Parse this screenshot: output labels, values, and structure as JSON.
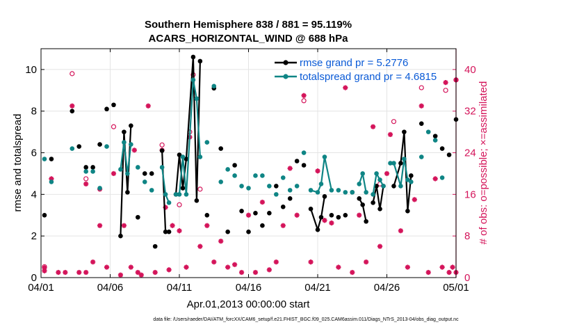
{
  "figure": {
    "title_line1": "Southern Hemisphere 838 / 881 = 95.119%",
    "title_line2": "ACARS_HORIZONTAL_WIND @ 688 hPa",
    "xlabel": "Apr.01,2013 00:00:00 start",
    "footer": "data file: /Users/raeder/DAI/ATM_forcXX/CAM6_setup/f.e21.FHIST_BGC.f09_025.CAM6assim.011/Diags_NTrS_2013-04/obs_diag_output.nc"
  },
  "colors": {
    "rmse": "#000000",
    "spread": "#0f8585",
    "obs": "#d4145a",
    "legend_text": "#0a5ad6",
    "grid": "#e4e4e4"
  },
  "chart_data": {
    "type": "line",
    "x_unit": "day of April 2013 (1 = 04/01 00:00)",
    "xlim": [
      1,
      31
    ],
    "ylim": [
      0,
      11
    ],
    "y2lim": [
      0,
      44
    ],
    "xticks": [
      {
        "value": 1,
        "label": "04/01"
      },
      {
        "value": 6,
        "label": "04/06"
      },
      {
        "value": 11,
        "label": "04/11"
      },
      {
        "value": 16,
        "label": "04/16"
      },
      {
        "value": 21,
        "label": "04/21"
      },
      {
        "value": 26,
        "label": "04/26"
      },
      {
        "value": 31,
        "label": "05/01"
      }
    ],
    "yticks": [
      0,
      2,
      4,
      6,
      8,
      10
    ],
    "y2ticks": [
      0,
      8,
      16,
      24,
      32,
      40
    ],
    "ylabel": "rmse and totalspread",
    "y2label": "# of obs: o=possible; ×=assimilated",
    "grid": true,
    "legend_position": "top-right",
    "series": [
      {
        "name": "rmse grand pr = 5.2776",
        "axis": "left",
        "style": "line-dots",
        "color": "#000000",
        "points": [
          [
            1.25,
            3.0
          ],
          [
            1.75,
            5.7
          ],
          [
            3.25,
            8.0
          ],
          [
            3.75,
            6.3
          ],
          [
            4.25,
            5.3
          ],
          [
            4.75,
            5.3
          ],
          [
            5.25,
            6.4
          ],
          [
            5.75,
            8.1
          ],
          [
            6.25,
            8.3
          ],
          [
            6.75,
            2.0
          ],
          [
            7.0,
            7.0
          ],
          [
            7.25,
            4.1
          ],
          [
            7.5,
            7.3
          ],
          [
            8.0,
            2.9
          ],
          [
            8.5,
            5.0
          ],
          [
            9.0,
            5.0
          ],
          [
            9.25,
            1.5
          ],
          [
            9.75,
            6.1
          ],
          [
            10.0,
            2.2
          ],
          [
            10.25,
            2.2
          ],
          [
            10.75,
            4.0
          ],
          [
            11.0,
            5.9
          ],
          [
            11.25,
            4.3
          ],
          [
            11.5,
            5.7
          ],
          [
            12.0,
            10.6
          ],
          [
            12.25,
            3.7
          ],
          [
            12.5,
            10.4
          ],
          [
            13.0,
            3.0
          ],
          [
            13.5,
            9.1
          ],
          [
            14.0,
            6.2
          ],
          [
            14.5,
            2.2
          ],
          [
            15.0,
            5.4
          ],
          [
            15.5,
            3.2
          ],
          [
            16.0,
            2.2
          ],
          [
            16.5,
            3.1
          ],
          [
            17.0,
            2.5
          ],
          [
            17.5,
            3.1
          ],
          [
            18.0,
            4.4
          ],
          [
            18.5,
            3.4
          ],
          [
            19.0,
            3.8
          ],
          [
            19.5,
            5.6
          ],
          [
            20.0,
            5.4
          ],
          [
            20.5,
            3.3
          ],
          [
            21.0,
            2.3
          ],
          [
            21.25,
            2.9
          ],
          [
            21.5,
            3.9
          ],
          [
            22.0,
            3.0
          ],
          [
            22.5,
            2.9
          ],
          [
            23.0,
            3.0
          ],
          [
            23.5,
            4.1
          ],
          [
            24.0,
            3.8
          ],
          [
            24.25,
            3.5
          ],
          [
            24.5,
            2.7
          ],
          [
            25.0,
            3.6
          ],
          [
            25.25,
            4.4
          ],
          [
            25.5,
            3.3
          ],
          [
            25.75,
            4.4
          ],
          [
            26.5,
            4.4
          ],
          [
            27.0,
            5.5
          ],
          [
            27.25,
            7.0
          ],
          [
            27.5,
            3.2
          ],
          [
            27.75,
            4.9
          ],
          [
            28.5,
            7.4
          ],
          [
            29.5,
            6.8
          ],
          [
            30.0,
            6.2
          ],
          [
            30.5,
            5.9
          ],
          [
            31.0,
            7.6
          ]
        ],
        "segments": [
          [
            [
              6.75,
              2.0
            ],
            [
              7.0,
              7.0
            ],
            [
              7.25,
              4.1
            ],
            [
              7.5,
              7.3
            ]
          ],
          [
            [
              9.75,
              6.1
            ],
            [
              10.0,
              2.2
            ],
            [
              10.25,
              2.2
            ]
          ],
          [
            [
              10.75,
              4.0
            ],
            [
              11.0,
              5.9
            ],
            [
              11.25,
              4.3
            ],
            [
              11.5,
              5.7
            ],
            [
              12.0,
              10.6
            ],
            [
              12.25,
              3.7
            ],
            [
              12.5,
              10.4
            ]
          ],
          [
            [
              20.5,
              3.3
            ],
            [
              21.0,
              2.3
            ],
            [
              21.25,
              2.9
            ],
            [
              21.5,
              3.9
            ]
          ],
          [
            [
              24.0,
              3.8
            ],
            [
              24.25,
              3.5
            ],
            [
              24.5,
              2.7
            ]
          ],
          [
            [
              25.0,
              3.6
            ],
            [
              25.25,
              4.4
            ],
            [
              25.5,
              3.3
            ],
            [
              25.75,
              4.4
            ]
          ],
          [
            [
              26.5,
              4.4
            ],
            [
              27.0,
              5.5
            ],
            [
              27.25,
              7.0
            ],
            [
              27.5,
              3.2
            ],
            [
              27.75,
              4.9
            ]
          ]
        ]
      },
      {
        "name": "totalspread grand pr = 4.6815",
        "axis": "left",
        "style": "line-dots",
        "color": "#0f8585",
        "points": [
          [
            1.25,
            5.7
          ],
          [
            1.75,
            4.6
          ],
          [
            3.25,
            6.2
          ],
          [
            4.25,
            5.1
          ],
          [
            4.75,
            5.1
          ],
          [
            5.25,
            4.3
          ],
          [
            5.75,
            6.3
          ],
          [
            6.75,
            5.2
          ],
          [
            7.0,
            6.5
          ],
          [
            7.25,
            5.0
          ],
          [
            7.5,
            6.4
          ],
          [
            8.0,
            5.3
          ],
          [
            8.5,
            4.6
          ],
          [
            9.0,
            4.2
          ],
          [
            9.75,
            5.3
          ],
          [
            10.0,
            4.0
          ],
          [
            10.25,
            3.6
          ],
          [
            10.75,
            4.0
          ],
          [
            11.0,
            4.0
          ],
          [
            11.25,
            5.8
          ],
          [
            11.5,
            4.0
          ],
          [
            12.0,
            9.5
          ],
          [
            12.25,
            8.6
          ],
          [
            12.5,
            5.8
          ],
          [
            13.0,
            6.5
          ],
          [
            13.5,
            9.2
          ],
          [
            14.0,
            4.6
          ],
          [
            14.5,
            5.2
          ],
          [
            15.0,
            4.9
          ],
          [
            15.5,
            4.4
          ],
          [
            16.0,
            4.3
          ],
          [
            16.5,
            4.9
          ],
          [
            17.0,
            4.9
          ],
          [
            17.5,
            4.4
          ],
          [
            18.0,
            4.0
          ],
          [
            18.5,
            4.8
          ],
          [
            19.0,
            4.2
          ],
          [
            19.5,
            4.4
          ],
          [
            20.0,
            6.0
          ],
          [
            20.5,
            4.2
          ],
          [
            21.0,
            4.1
          ],
          [
            21.25,
            4.5
          ],
          [
            21.5,
            5.8
          ],
          [
            22.0,
            4.2
          ],
          [
            22.5,
            4.2
          ],
          [
            23.0,
            4.1
          ],
          [
            23.5,
            4.1
          ],
          [
            24.0,
            4.5
          ],
          [
            24.25,
            5.0
          ],
          [
            24.5,
            4.1
          ],
          [
            25.0,
            4.0
          ],
          [
            25.25,
            5.0
          ],
          [
            25.5,
            4.7
          ],
          [
            25.75,
            4.4
          ],
          [
            26.25,
            5.5
          ],
          [
            26.5,
            5.5
          ],
          [
            27.0,
            4.4
          ],
          [
            27.25,
            5.7
          ],
          [
            27.5,
            4.7
          ],
          [
            27.75,
            4.6
          ],
          [
            28.5,
            5.8
          ],
          [
            29.0,
            7.0
          ],
          [
            29.5,
            6.6
          ],
          [
            30.0,
            4.8
          ]
        ],
        "segments": [
          [
            [
              6.75,
              5.2
            ],
            [
              7.0,
              6.5
            ],
            [
              7.25,
              5.0
            ],
            [
              7.5,
              6.4
            ]
          ],
          [
            [
              9.75,
              5.3
            ],
            [
              10.0,
              4.0
            ],
            [
              10.25,
              3.6
            ]
          ],
          [
            [
              10.75,
              4.0
            ],
            [
              11.0,
              4.0
            ],
            [
              11.25,
              5.8
            ],
            [
              11.5,
              4.0
            ],
            [
              12.0,
              9.5
            ],
            [
              12.25,
              8.6
            ],
            [
              12.5,
              5.8
            ]
          ],
          [
            [
              20.5,
              4.2
            ],
            [
              21.0,
              4.1
            ],
            [
              21.25,
              4.5
            ],
            [
              21.5,
              5.8
            ],
            [
              22.0,
              4.2
            ]
          ],
          [
            [
              24.0,
              4.5
            ],
            [
              24.25,
              5.0
            ],
            [
              24.5,
              4.1
            ]
          ],
          [
            [
              25.0,
              4.0
            ],
            [
              25.25,
              5.0
            ],
            [
              25.5,
              4.7
            ],
            [
              25.75,
              4.4
            ]
          ],
          [
            [
              26.5,
              5.5
            ],
            [
              27.0,
              4.4
            ],
            [
              27.25,
              5.7
            ],
            [
              27.5,
              4.7
            ],
            [
              27.75,
              4.6
            ]
          ]
        ]
      }
    ],
    "obs_possible_extra": {
      "name": "possible (o)",
      "axis": "right",
      "marker": "circle",
      "color": "#d4145a",
      "points": [
        [
          1.25,
          2.1
        ],
        [
          3.25,
          39.2
        ],
        [
          4.25,
          19.0
        ],
        [
          6.25,
          29.0
        ],
        [
          9.75,
          25.5
        ],
        [
          11.0,
          14.0
        ],
        [
          11.75,
          28.0
        ],
        [
          12.5,
          17.0
        ],
        [
          20.0,
          34.0
        ],
        [
          26.5,
          30.0
        ],
        [
          28.5,
          36.5
        ],
        [
          31.0,
          38.0
        ],
        [
          30.25,
          36.0
        ],
        [
          25.5,
          18.0
        ],
        [
          12.0,
          39.0
        ]
      ]
    },
    "obs_assimilated": {
      "name": "assimilated (×)",
      "axis": "right",
      "marker": "asterisk",
      "color": "#d4145a",
      "points": [
        [
          1.25,
          1.3
        ],
        [
          1.25,
          1.9
        ],
        [
          1.75,
          19.0
        ],
        [
          2.25,
          1.0
        ],
        [
          2.75,
          1.0
        ],
        [
          3.25,
          33.0
        ],
        [
          3.75,
          1.0
        ],
        [
          4.25,
          18.0
        ],
        [
          4.25,
          1.0
        ],
        [
          4.75,
          3.0
        ],
        [
          5.25,
          17.0
        ],
        [
          5.25,
          10.0
        ],
        [
          5.75,
          2.0
        ],
        [
          6.25,
          20.0
        ],
        [
          6.75,
          0.5
        ],
        [
          7.0,
          10.0
        ],
        [
          7.5,
          2.0
        ],
        [
          7.75,
          24.5
        ],
        [
          8.0,
          1.0
        ],
        [
          8.25,
          0.5
        ],
        [
          8.75,
          33.0
        ],
        [
          9.25,
          1.0
        ],
        [
          9.75,
          24.5
        ],
        [
          10.0,
          13.5
        ],
        [
          10.25,
          1.5
        ],
        [
          10.5,
          10.0
        ],
        [
          11.0,
          9.0
        ],
        [
          11.5,
          2.0
        ],
        [
          11.75,
          27.0
        ],
        [
          12.5,
          6.0
        ],
        [
          13.0,
          10.0
        ],
        [
          13.5,
          3.0
        ],
        [
          14.0,
          7.0
        ],
        [
          14.5,
          2.0
        ],
        [
          15.0,
          2.5
        ],
        [
          15.5,
          1.0
        ],
        [
          16.0,
          12.0
        ],
        [
          16.5,
          1.0
        ],
        [
          17.0,
          14.5
        ],
        [
          17.5,
          1.5
        ],
        [
          18.0,
          3.0
        ],
        [
          18.5,
          10.0
        ],
        [
          19.0,
          21.0
        ],
        [
          19.5,
          12.0
        ],
        [
          20.0,
          35.0
        ],
        [
          20.5,
          3.0
        ],
        [
          21.0,
          20.5
        ],
        [
          21.5,
          11.0
        ],
        [
          22.0,
          10.5
        ],
        [
          22.5,
          2.0
        ],
        [
          23.0,
          36.5
        ],
        [
          23.5,
          1.0
        ],
        [
          24.0,
          12.0
        ],
        [
          24.5,
          3.0
        ],
        [
          25.0,
          29.0
        ],
        [
          25.5,
          6.0
        ],
        [
          26.0,
          20.0
        ],
        [
          26.25,
          27.5
        ],
        [
          27.0,
          9.0
        ],
        [
          27.5,
          2.0
        ],
        [
          28.0,
          15.0
        ],
        [
          28.5,
          33.0
        ],
        [
          29.0,
          1.0
        ],
        [
          29.5,
          19.0
        ],
        [
          30.0,
          2.0
        ],
        [
          30.25,
          37.5
        ],
        [
          30.5,
          1.0
        ],
        [
          30.75,
          2.0
        ],
        [
          31.0,
          1.0
        ],
        [
          31.0,
          38.0
        ]
      ]
    }
  }
}
